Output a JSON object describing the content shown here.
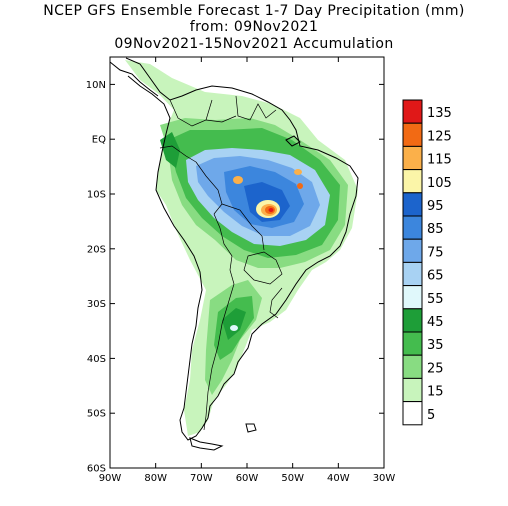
{
  "title": {
    "line1": "NCEP GFS Ensemble Forecast 1-7 Day Precipitation (mm)",
    "line2": "from: 09Nov2021",
    "line3": "09Nov2021-15Nov2021 Accumulation"
  },
  "map": {
    "lat_labels": [
      "10N",
      "EQ",
      "10S",
      "20S",
      "30S",
      "40S",
      "50S",
      "60S"
    ],
    "lon_labels": [
      "90W",
      "80W",
      "70W",
      "60W",
      "50W",
      "40W",
      "30W"
    ],
    "lat_range": [
      -60,
      15
    ],
    "lon_range": [
      -90,
      -30
    ]
  },
  "colorbar": {
    "levels": [
      "135",
      "125",
      "115",
      "105",
      "95",
      "85",
      "75",
      "65",
      "55",
      "45",
      "35",
      "25",
      "15",
      "5"
    ],
    "colors": [
      "#e01818",
      "#f26a14",
      "#fbb04a",
      "#fbf5a8",
      "#1c64cc",
      "#3c86dd",
      "#6ea8ea",
      "#a8d2f3",
      "#e0f8fb",
      "#1e9e38",
      "#44bc4e",
      "#88dc82",
      "#c8f4bc",
      "#ffffff"
    ]
  }
}
